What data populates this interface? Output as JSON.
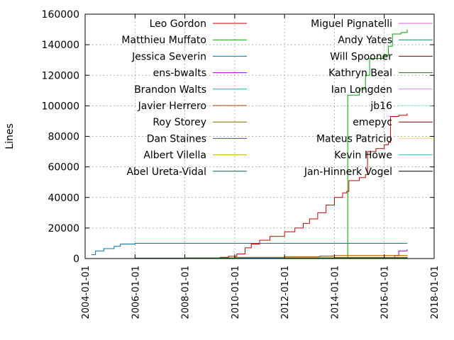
{
  "chart_data": {
    "type": "line",
    "ylabel": "Lines",
    "xlim": [
      "2004-01-01",
      "2018-01-01"
    ],
    "ylim": [
      0,
      160000
    ],
    "x_ticks": [
      "2004-01-01",
      "2006-01-01",
      "2008-01-01",
      "2010-01-01",
      "2012-01-01",
      "2014-01-01",
      "2016-01-01",
      "2018-01-01"
    ],
    "y_ticks": [
      0,
      20000,
      40000,
      60000,
      80000,
      100000,
      120000,
      140000,
      160000
    ],
    "grid": true,
    "legend_position": "top-inside",
    "series": [
      {
        "name": "Leo Gordon",
        "color": "#cc0000",
        "step": true,
        "points": [
          [
            "2007-06-01",
            0
          ],
          [
            "2009-06-01",
            800
          ],
          [
            "2009-10-01",
            1500
          ],
          [
            "2010-02-01",
            3000
          ],
          [
            "2010-06-01",
            7000
          ],
          [
            "2010-09-01",
            9500
          ],
          [
            "2011-01-01",
            12000
          ],
          [
            "2011-06-01",
            14500
          ],
          [
            "2012-01-01",
            17500
          ],
          [
            "2012-06-01",
            20000
          ],
          [
            "2012-10-01",
            23000
          ],
          [
            "2013-01-01",
            26000
          ],
          [
            "2013-05-01",
            30000
          ],
          [
            "2013-09-01",
            35000
          ],
          [
            "2014-01-01",
            40000
          ],
          [
            "2014-05-01",
            43000
          ],
          [
            "2014-07-01",
            44000
          ],
          [
            "2014-08-01",
            51000
          ],
          [
            "2015-01-01",
            53000
          ],
          [
            "2015-04-01",
            55000
          ],
          [
            "2015-05-01",
            70000
          ],
          [
            "2015-09-01",
            72000
          ],
          [
            "2016-01-01",
            74500
          ],
          [
            "2016-03-01",
            76000
          ],
          [
            "2016-04-01",
            93000
          ],
          [
            "2016-08-01",
            93800
          ],
          [
            "2016-12-01",
            95000
          ]
        ]
      },
      {
        "name": "Matthieu Muffato",
        "color": "#00aa00",
        "step": true,
        "points": [
          [
            "2014-07-01",
            0
          ],
          [
            "2014-07-15",
            107000
          ],
          [
            "2015-01-01",
            111000
          ],
          [
            "2015-04-01",
            120000
          ],
          [
            "2015-06-01",
            131000
          ],
          [
            "2016-01-01",
            133000
          ],
          [
            "2016-03-01",
            139000
          ],
          [
            "2016-05-01",
            147000
          ],
          [
            "2016-09-01",
            148000
          ],
          [
            "2016-12-01",
            150000
          ]
        ]
      },
      {
        "name": "Jessica Severin",
        "color": "#0077aa",
        "step": true,
        "points": [
          [
            "2004-04-01",
            2500
          ],
          [
            "2004-06-01",
            5000
          ],
          [
            "2004-10-01",
            6500
          ],
          [
            "2005-03-01",
            8000
          ],
          [
            "2005-06-01",
            9500
          ],
          [
            "2006-01-01",
            10000
          ],
          [
            "2016-12-01",
            10200
          ]
        ]
      },
      {
        "name": "ens-bwalts",
        "color": "#9900cc",
        "step": true,
        "points": [
          [
            "2015-06-01",
            0
          ],
          [
            "2016-06-01",
            2000
          ],
          [
            "2016-08-01",
            5000
          ],
          [
            "2016-12-01",
            6000
          ]
        ]
      },
      {
        "name": "Brandon Walts",
        "color": "#00bbbb",
        "step": true,
        "points": [
          [
            "2014-01-01",
            0
          ],
          [
            "2014-07-01",
            400
          ],
          [
            "2016-12-01",
            900
          ]
        ]
      },
      {
        "name": "Javier Herrero",
        "color": "#aa4400",
        "step": true,
        "points": [
          [
            "2007-06-01",
            0
          ],
          [
            "2008-01-01",
            400
          ],
          [
            "2010-01-01",
            800
          ],
          [
            "2012-01-01",
            1200
          ],
          [
            "2013-06-01",
            1600
          ],
          [
            "2014-01-01",
            2000
          ],
          [
            "2016-12-01",
            2200
          ]
        ]
      },
      {
        "name": "Roy Storey",
        "color": "#886600",
        "step": true,
        "points": [
          [
            "2008-01-01",
            0
          ],
          [
            "2012-01-01",
            300
          ],
          [
            "2016-12-01",
            600
          ]
        ]
      },
      {
        "name": "Dan Staines",
        "color": "#4444cc",
        "step": true,
        "points": [
          [
            "2012-01-01",
            0
          ],
          [
            "2016-12-01",
            400
          ]
        ]
      },
      {
        "name": "Albert Vilella",
        "color": "#ddaa00",
        "step": true,
        "points": [
          [
            "2008-01-01",
            0
          ],
          [
            "2010-01-01",
            500
          ],
          [
            "2012-01-01",
            800
          ],
          [
            "2016-12-01",
            900
          ]
        ]
      },
      {
        "name": "Abel Ureta-Vidal",
        "color": "#006633",
        "step": true,
        "points": [
          [
            "2004-06-01",
            0
          ],
          [
            "2006-01-01",
            300
          ],
          [
            "2016-12-01",
            500
          ]
        ]
      },
      {
        "name": "Miguel Pignatelli",
        "color": "#dd66dd",
        "step": true,
        "points": [
          [
            "2012-06-01",
            0
          ],
          [
            "2016-12-01",
            500
          ]
        ]
      },
      {
        "name": "Andy Yates",
        "color": "#009955",
        "step": true,
        "points": [
          [
            "2013-01-01",
            0
          ],
          [
            "2016-12-01",
            600
          ]
        ]
      },
      {
        "name": "Will Spooner",
        "color": "#660000",
        "step": true,
        "points": [
          [
            "2008-01-01",
            0
          ],
          [
            "2016-12-01",
            300
          ]
        ]
      },
      {
        "name": "Kathryn Beal",
        "color": "#336600",
        "step": true,
        "points": [
          [
            "2008-06-01",
            0
          ],
          [
            "2014-01-01",
            600
          ],
          [
            "2016-12-01",
            1000
          ]
        ]
      },
      {
        "name": "Ian Longden",
        "color": "#dd88ee",
        "step": true,
        "points": [
          [
            "2009-01-01",
            0
          ],
          [
            "2016-12-01",
            200
          ]
        ]
      },
      {
        "name": "jb16",
        "color": "#99eedd",
        "step": true,
        "points": [
          [
            "2011-01-01",
            0
          ],
          [
            "2016-12-01",
            200
          ]
        ]
      },
      {
        "name": "emepyc",
        "color": "#880000",
        "step": true,
        "points": [
          [
            "2014-01-01",
            0
          ],
          [
            "2016-12-01",
            300
          ]
        ]
      },
      {
        "name": "Mateus Patricio",
        "color": "#eeee00",
        "step": true,
        "points": [
          [
            "2015-01-01",
            0
          ],
          [
            "2016-12-01",
            200
          ]
        ]
      },
      {
        "name": "Kevin Howe",
        "color": "#33bbbb",
        "step": true,
        "points": [
          [
            "2010-01-01",
            0
          ],
          [
            "2016-12-01",
            150
          ]
        ]
      },
      {
        "name": "Jan-Hinnerk Vogel",
        "color": "#000000",
        "step": true,
        "points": [
          [
            "2009-01-01",
            0
          ],
          [
            "2016-12-01",
            100
          ]
        ]
      }
    ]
  }
}
